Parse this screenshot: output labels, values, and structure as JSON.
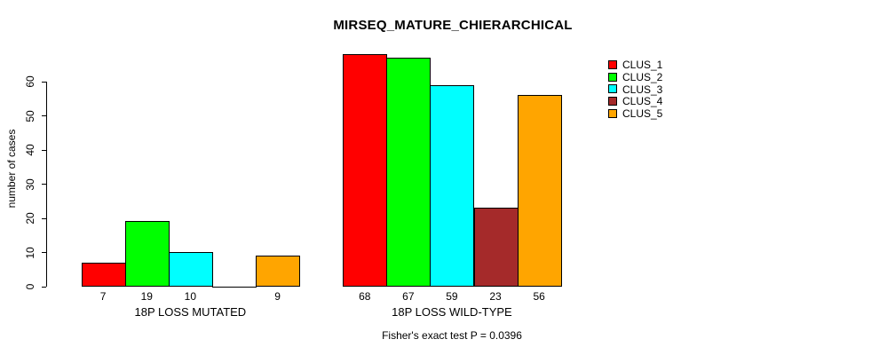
{
  "title": "MIRSEQ_MATURE_CHIERARCHICAL",
  "chart_data": {
    "type": "bar",
    "title": "MIRSEQ_MATURE_CHIERARCHICAL",
    "ylabel": "number of cases",
    "xlabel": "",
    "ylim": [
      0,
      60
    ],
    "yticks": [
      0,
      10,
      20,
      30,
      40,
      50,
      60
    ],
    "grid": false,
    "legend_position": "right-outside",
    "series": [
      {
        "name": "CLUS_1",
        "color": "#ff0000",
        "values": [
          7,
          68
        ]
      },
      {
        "name": "CLUS_2",
        "color": "#00ff00",
        "values": [
          19,
          67
        ]
      },
      {
        "name": "CLUS_3",
        "color": "#00ffff",
        "values": [
          10,
          59
        ]
      },
      {
        "name": "CLUS_4",
        "color": "#a52a2a",
        "values": [
          0,
          23
        ]
      },
      {
        "name": "CLUS_5",
        "color": "#ffa500",
        "values": [
          9,
          56
        ]
      }
    ],
    "groups": [
      {
        "label": "18P LOSS MUTATED",
        "values": [
          7,
          19,
          10,
          0,
          9
        ],
        "bar_labels": [
          "7",
          "19",
          "10",
          "",
          "9"
        ]
      },
      {
        "label": "18P LOSS WILD-TYPE",
        "values": [
          68,
          67,
          59,
          23,
          56
        ],
        "bar_labels": [
          "68",
          "67",
          "59",
          "23",
          "56"
        ]
      }
    ],
    "annotation": "Fisher's exact test P = 0.0396",
    "colors": {
      "bar_border": "#000000",
      "axis": "#000000",
      "text": "#000000",
      "background": "#ffffff"
    }
  }
}
